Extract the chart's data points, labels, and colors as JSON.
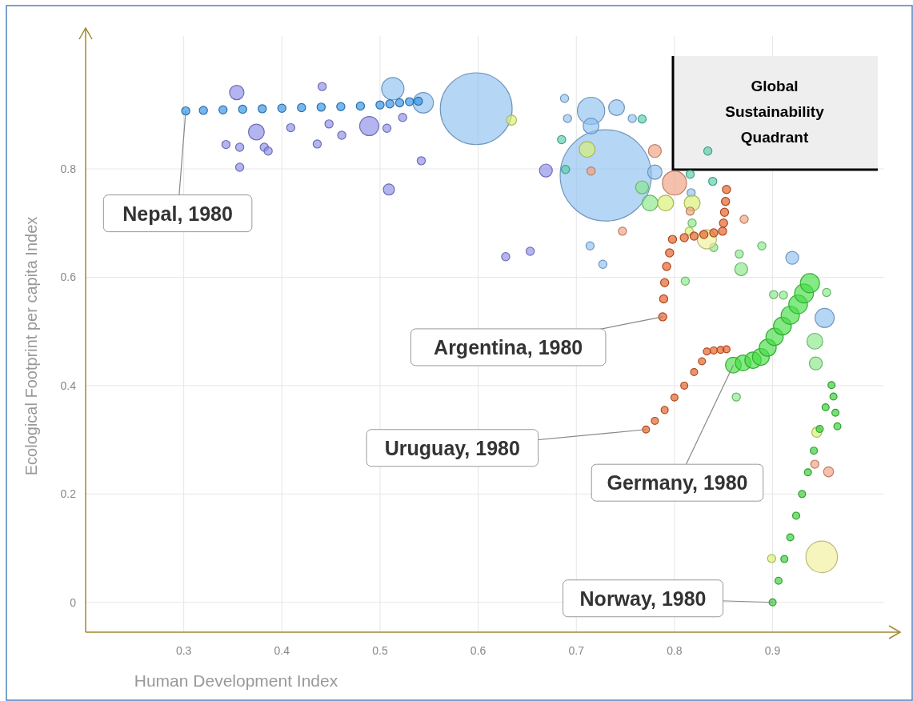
{
  "chart_data": {
    "type": "bubble",
    "xlabel": "Human Development Index",
    "ylabel": "Ecological Footprint per capita Index",
    "xlim": [
      0.2,
      1.03
    ],
    "ylim": [
      -0.055,
      1.06
    ],
    "xticks": [
      0.3,
      0.4,
      0.5,
      0.6,
      0.7,
      0.8,
      0.9
    ],
    "yticks": [
      0,
      0.2,
      0.4,
      0.6,
      0.8
    ],
    "grid": true,
    "marker": "circle",
    "series": [
      {
        "type": "bubble",
        "color": "#8ec0f0",
        "x": [
          0.598,
          0.73,
          0.715,
          0.513,
          0.544,
          0.741,
          0.715,
          0.78,
          0.953,
          0.92,
          0.688,
          0.691,
          0.714,
          0.727,
          0.757,
          0.817
        ],
        "values": [
          0.911,
          0.788,
          0.907,
          0.948,
          0.922,
          0.913,
          0.879,
          0.794,
          0.525,
          0.636,
          0.93,
          0.893,
          0.658,
          0.624,
          0.893,
          0.756
        ],
        "sizes": [
          0.62,
          1,
          0.09,
          0.06,
          0.05,
          0.03,
          0.03,
          0.025,
          0.044,
          0.02,
          0.008,
          0.008,
          0.008,
          0.008,
          0.008,
          0.008
        ]
      },
      {
        "type": "bubble",
        "color": "#8c8ce8",
        "x": [
          0.354,
          0.374,
          0.489,
          0.669,
          0.343,
          0.357,
          0.357,
          0.382,
          0.386,
          0.409,
          0.441,
          0.448,
          0.436,
          0.461,
          0.509,
          0.542,
          0.628,
          0.653,
          0.507,
          0.523
        ],
        "values": [
          0.941,
          0.868,
          0.879,
          0.797,
          0.845,
          0.84,
          0.803,
          0.84,
          0.833,
          0.876,
          0.952,
          0.883,
          0.846,
          0.862,
          0.762,
          0.815,
          0.638,
          0.648,
          0.875,
          0.895
        ],
        "sizes": [
          0.025,
          0.03,
          0.044,
          0.02,
          0.008,
          0.008,
          0.008,
          0.008,
          0.008,
          0.008,
          0.008,
          0.008,
          0.008,
          0.008,
          0.015,
          0.008,
          0.008,
          0.008,
          0.008,
          0.008
        ]
      },
      {
        "type": "bubble",
        "color": "#88e888",
        "x": [
          0.767,
          0.775,
          0.868,
          0.943,
          0.944,
          0.901,
          0.911,
          0.955,
          0.863,
          0.811,
          0.84,
          0.866,
          0.889,
          0.818
        ],
        "values": [
          0.766,
          0.737,
          0.615,
          0.482,
          0.441,
          0.568,
          0.567,
          0.572,
          0.379,
          0.593,
          0.655,
          0.643,
          0.658,
          0.7
        ],
        "sizes": [
          0.02,
          0.03,
          0.02,
          0.03,
          0.02,
          0.008,
          0.008,
          0.008,
          0.008,
          0.008,
          0.008,
          0.008,
          0.008,
          0.008
        ]
      },
      {
        "type": "bubble",
        "color": "#d8f070",
        "x": [
          0.634,
          0.711,
          0.791,
          0.818,
          0.945,
          0.899,
          0.815
        ],
        "values": [
          0.89,
          0.836,
          0.737,
          0.737,
          0.314,
          0.081,
          0.685
        ],
        "sizes": [
          0.012,
          0.03,
          0.03,
          0.03,
          0.012,
          0.008,
          0.008
        ]
      },
      {
        "type": "bubble",
        "color": "#f0f09a",
        "x": [
          0.95,
          0.833
        ],
        "values": [
          0.084,
          0.67
        ],
        "sizes": [
          0.12,
          0.044
        ]
      },
      {
        "type": "bubble",
        "color": "#f0a080",
        "x": [
          0.8,
          0.78,
          0.747,
          0.871,
          0.957,
          0.943,
          0.715,
          0.816
        ],
        "values": [
          0.774,
          0.833,
          0.685,
          0.707,
          0.241,
          0.255,
          0.796,
          0.722
        ],
        "sizes": [
          0.07,
          0.02,
          0.008,
          0.008,
          0.012,
          0.008,
          0.008,
          0.008
        ]
      },
      {
        "type": "bubble",
        "color": "#55ccaa",
        "x": [
          0.834,
          0.816,
          0.839,
          0.685,
          0.689,
          0.767
        ],
        "values": [
          0.833,
          0.79,
          0.777,
          0.854,
          0.799,
          0.892
        ],
        "sizes": [
          0.008,
          0.008,
          0.008,
          0.008,
          0.008,
          0.008
        ]
      },
      {
        "type": "bubble",
        "color": "#2f8fe0",
        "x": [
          0.302,
          0.32,
          0.34,
          0.36,
          0.38,
          0.4,
          0.42,
          0.44,
          0.46,
          0.48,
          0.5,
          0.51,
          0.52,
          0.53,
          0.539
        ],
        "values": [
          0.907,
          0.908,
          0.909,
          0.91,
          0.911,
          0.912,
          0.913,
          0.914,
          0.915,
          0.916,
          0.918,
          0.92,
          0.922,
          0.924,
          0.925
        ],
        "sizes": [
          0.008,
          0.008,
          0.008,
          0.008,
          0.008,
          0.008,
          0.008,
          0.008,
          0.008,
          0.008,
          0.008,
          0.008,
          0.008,
          0.008,
          0.008
        ]
      },
      {
        "type": "bubble",
        "color": "#e05a20",
        "x": [
          0.788,
          0.789,
          0.79,
          0.792,
          0.795,
          0.798,
          0.81,
          0.82,
          0.83,
          0.84,
          0.849,
          0.85,
          0.851,
          0.852,
          0.853
        ],
        "values": [
          0.527,
          0.56,
          0.59,
          0.62,
          0.645,
          0.67,
          0.673,
          0.676,
          0.679,
          0.682,
          0.685,
          0.7,
          0.72,
          0.74,
          0.762
        ],
        "sizes": [
          0.008,
          0.008,
          0.008,
          0.008,
          0.008,
          0.008,
          0.008,
          0.008,
          0.008,
          0.008,
          0.008,
          0.008,
          0.008,
          0.008,
          0.008
        ]
      },
      {
        "type": "bubble",
        "color": "#e05a20",
        "x": [
          0.771,
          0.78,
          0.79,
          0.8,
          0.81,
          0.82,
          0.828,
          0.833,
          0.84,
          0.847,
          0.853
        ],
        "values": [
          0.319,
          0.335,
          0.355,
          0.378,
          0.4,
          0.425,
          0.445,
          0.463,
          0.465,
          0.466,
          0.467
        ],
        "sizes": [
          0.006,
          0.006,
          0.006,
          0.006,
          0.006,
          0.006,
          0.006,
          0.006,
          0.006,
          0.006,
          0.006
        ]
      },
      {
        "type": "bubble",
        "color": "#44dd44",
        "x": [
          0.86,
          0.87,
          0.88,
          0.888,
          0.895,
          0.902,
          0.91,
          0.918,
          0.926,
          0.932,
          0.938
        ],
        "values": [
          0.438,
          0.442,
          0.447,
          0.453,
          0.47,
          0.49,
          0.51,
          0.53,
          0.55,
          0.57,
          0.589
        ],
        "sizes": [
          0.03,
          0.03,
          0.032,
          0.034,
          0.035,
          0.036,
          0.038,
          0.04,
          0.042,
          0.043,
          0.044
        ]
      },
      {
        "type": "bubble",
        "color": "#33cc33",
        "x": [
          0.9,
          0.906,
          0.912,
          0.918,
          0.924,
          0.93,
          0.936,
          0.942,
          0.948,
          0.954,
          0.96,
          0.962,
          0.964,
          0.966
        ],
        "values": [
          0,
          0.04,
          0.08,
          0.12,
          0.16,
          0.2,
          0.24,
          0.28,
          0.32,
          0.36,
          0.401,
          0.38,
          0.35,
          0.325
        ],
        "sizes": [
          0.006,
          0.006,
          0.006,
          0.006,
          0.006,
          0.006,
          0.006,
          0.006,
          0.006,
          0.006,
          0.006,
          0.006,
          0.006,
          0.006
        ]
      }
    ],
    "annotations": [
      {
        "text": "Nepal, 1980",
        "x": 0.302,
        "y": 0.907
      },
      {
        "text": "Argentina, 1980",
        "x": 0.788,
        "y": 0.527
      },
      {
        "text": "Uruguay, 1980",
        "x": 0.771,
        "y": 0.319
      },
      {
        "text": "Germany, 1980",
        "x": 0.86,
        "y": 0.438
      },
      {
        "text": "Norway, 1980",
        "x": 0.9,
        "y": 0
      },
      "Global Sustainability Quadrant"
    ]
  }
}
